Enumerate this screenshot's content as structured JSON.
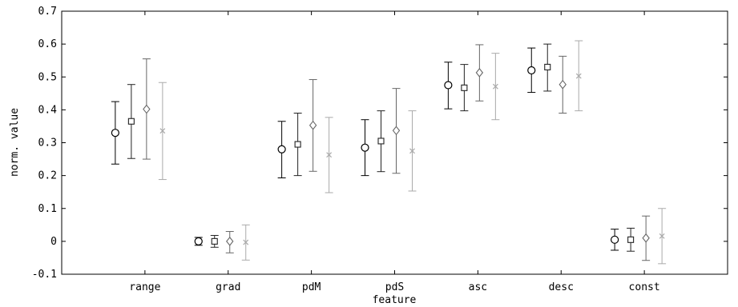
{
  "chart_data": {
    "type": "scatter",
    "xlabel": "feature",
    "ylabel": "norm. value",
    "ylim": [
      -0.1,
      0.7
    ],
    "yticks": [
      -0.1,
      0,
      0.1,
      0.2,
      0.3,
      0.4,
      0.5,
      0.6,
      0.7
    ],
    "ytick_labels": [
      "-0.1",
      "0",
      "0.1",
      "0.2",
      "0.3",
      "0.4",
      "0.5",
      "0.6",
      "0.7"
    ],
    "grid": false,
    "categories": [
      "range",
      "grad",
      "pdM",
      "pdS",
      "asc",
      "desc",
      "const"
    ],
    "series": [
      {
        "marker": "circle",
        "color": "#000000",
        "values": [
          0.33,
          0.0,
          0.28,
          0.285,
          0.475,
          0.52,
          0.005
        ],
        "lower": [
          0.235,
          -0.012,
          0.193,
          0.2,
          0.403,
          0.453,
          -0.027
        ],
        "upper": [
          0.425,
          0.012,
          0.365,
          0.37,
          0.545,
          0.588,
          0.037
        ]
      },
      {
        "marker": "square",
        "color": "#222222",
        "values": [
          0.365,
          0.0,
          0.295,
          0.305,
          0.467,
          0.53,
          0.005
        ],
        "lower": [
          0.252,
          -0.018,
          0.2,
          0.212,
          0.397,
          0.457,
          -0.03
        ],
        "upper": [
          0.477,
          0.018,
          0.39,
          0.397,
          0.538,
          0.6,
          0.04
        ]
      },
      {
        "marker": "diamond",
        "color": "#666666",
        "values": [
          0.402,
          0.0,
          0.353,
          0.337,
          0.513,
          0.477,
          0.01
        ],
        "lower": [
          0.25,
          -0.035,
          0.213,
          0.207,
          0.427,
          0.39,
          -0.058
        ],
        "upper": [
          0.555,
          0.03,
          0.492,
          0.465,
          0.598,
          0.563,
          0.077
        ]
      },
      {
        "marker": "x",
        "color": "#aaaaaa",
        "values": [
          0.336,
          -0.003,
          0.263,
          0.275,
          0.471,
          0.503,
          0.016
        ],
        "lower": [
          0.188,
          -0.057,
          0.148,
          0.153,
          0.37,
          0.397,
          -0.068
        ],
        "upper": [
          0.483,
          0.05,
          0.377,
          0.397,
          0.572,
          0.61,
          0.1
        ]
      }
    ]
  }
}
